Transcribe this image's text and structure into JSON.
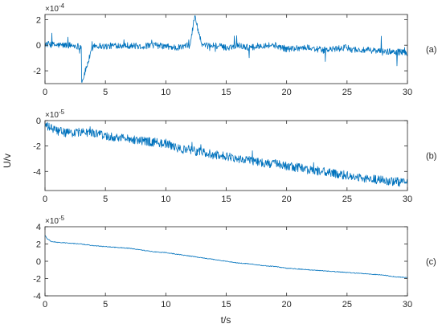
{
  "chart_data": {
    "type": "line",
    "xlabel": "t/s",
    "ylabel": "U/v",
    "series_color": "#0072BD",
    "x_ticks": [
      0,
      5,
      10,
      15,
      20,
      25,
      30
    ],
    "xlim": [
      0,
      30
    ],
    "panels": [
      {
        "label": "(a)",
        "exponent_text": "×10",
        "exponent_power": "-4",
        "ylim": [
          -3,
          2.4
        ],
        "y_ticks": [
          -2,
          0,
          2
        ],
        "x": [
          0,
          0.5,
          1,
          2,
          3,
          3.05,
          4,
          5,
          6,
          6.6,
          8,
          9,
          10,
          11,
          12,
          12.4,
          13,
          14,
          15,
          16,
          17,
          18,
          19,
          20,
          21,
          22,
          23,
          24,
          25,
          26,
          27,
          28,
          29,
          30
        ],
        "y": [
          0.1,
          0.05,
          0,
          0,
          -0.1,
          -2.9,
          0,
          -0.1,
          0,
          0,
          -0.1,
          0,
          -0.1,
          -0.2,
          0,
          2.3,
          -0.1,
          0,
          -0.2,
          0,
          -0.2,
          0,
          0,
          -0.3,
          -0.2,
          -0.2,
          -0.4,
          -0.3,
          -0.2,
          -0.4,
          -0.4,
          -0.5,
          -0.5,
          -0.6
        ]
      },
      {
        "label": "(b)",
        "exponent_text": "×10",
        "exponent_power": "-5",
        "ylim": [
          -5.5,
          0
        ],
        "y_ticks": [
          -4,
          -2,
          0
        ],
        "x": [
          0,
          0.5,
          1,
          2,
          3,
          4,
          5,
          6,
          7,
          8,
          9,
          10,
          11,
          12,
          13,
          14,
          15,
          16,
          17,
          18,
          19,
          20,
          21,
          22,
          23,
          24,
          25,
          26,
          27,
          28,
          29,
          30
        ],
        "y": [
          -0.4,
          -0.6,
          -0.8,
          -1.0,
          -0.9,
          -1.0,
          -1.2,
          -1.3,
          -1.4,
          -1.6,
          -1.7,
          -1.8,
          -2.2,
          -2.3,
          -2.5,
          -2.7,
          -2.8,
          -3.0,
          -3.1,
          -3.3,
          -3.4,
          -3.6,
          -3.7,
          -3.9,
          -4.0,
          -4.2,
          -4.3,
          -4.5,
          -4.6,
          -4.7,
          -4.8,
          -4.9
        ]
      },
      {
        "label": "(c)",
        "exponent_text": "×10",
        "exponent_power": "-5",
        "ylim": [
          -4,
          4
        ],
        "y_ticks": [
          -4,
          -2,
          0,
          2,
          4
        ],
        "x": [
          0,
          0.2,
          0.5,
          1,
          2,
          3,
          4,
          5,
          6,
          7,
          8,
          9,
          10,
          11,
          12,
          13,
          14,
          15,
          16,
          17,
          18,
          19,
          20,
          21,
          22,
          23,
          24,
          25,
          26,
          27,
          28,
          29,
          30
        ],
        "y": [
          3.0,
          2.6,
          2.3,
          2.2,
          2.1,
          2.0,
          1.8,
          1.7,
          1.6,
          1.5,
          1.3,
          1.1,
          1.0,
          0.8,
          0.6,
          0.4,
          0.2,
          0.0,
          -0.2,
          -0.3,
          -0.5,
          -0.6,
          -0.8,
          -0.9,
          -1.0,
          -1.1,
          -1.2,
          -1.3,
          -1.4,
          -1.5,
          -1.6,
          -1.8,
          -1.9
        ]
      }
    ]
  }
}
